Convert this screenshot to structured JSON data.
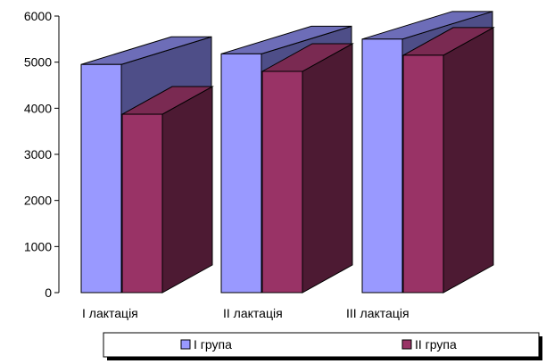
{
  "chart_data": {
    "type": "bar",
    "style": "3d-column",
    "categories": [
      "І лактація",
      "ІІ лактація",
      "ІІІ лактація"
    ],
    "series": [
      {
        "name": "І група",
        "values": [
          4950,
          5180,
          5500
        ],
        "color": "#9999ff",
        "side_color": "#4e4e88",
        "top_color": "#6d6db8"
      },
      {
        "name": "ІІ група",
        "values": [
          3870,
          4800,
          5150
        ],
        "color": "#993366",
        "side_color": "#4d1a33",
        "top_color": "#7a2a52"
      }
    ],
    "ylim": [
      0,
      6000
    ],
    "yticks": [
      0,
      1000,
      2000,
      3000,
      4000,
      5000,
      6000
    ],
    "grid": false,
    "legend_position": "bottom"
  }
}
